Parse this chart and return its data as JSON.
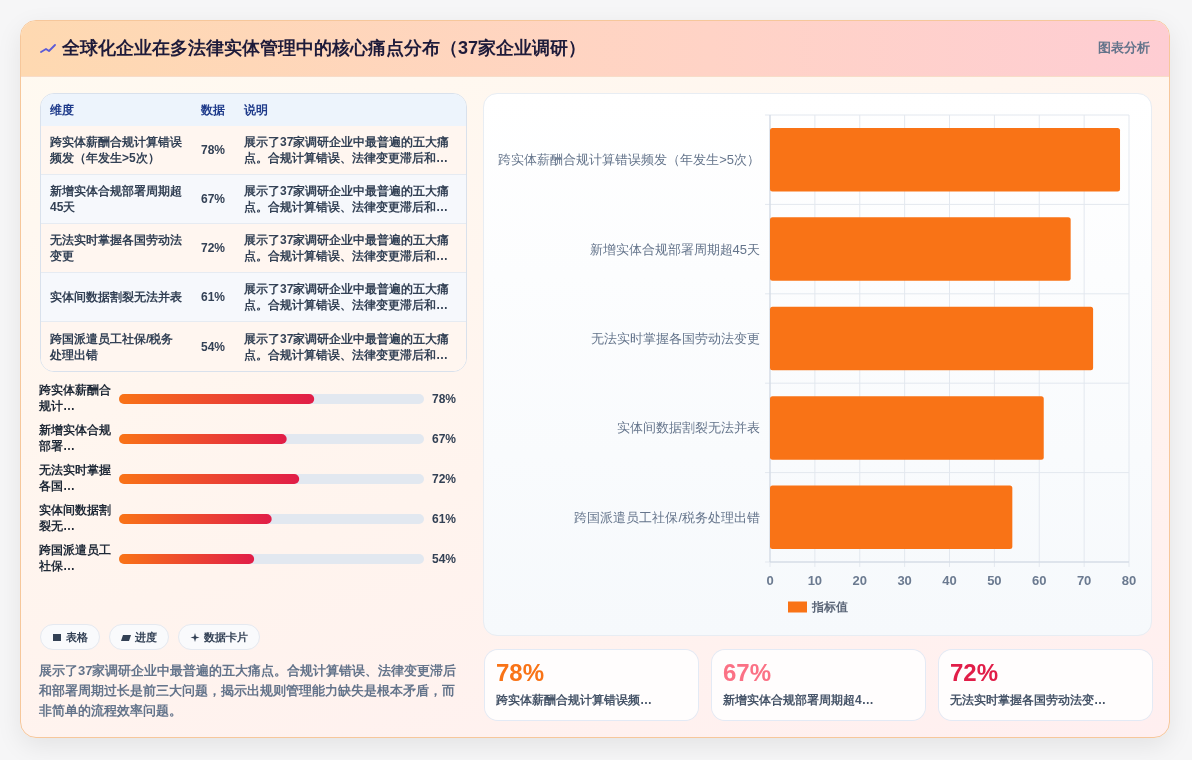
{
  "chart_data": [
    {
      "type": "other",
      "title": "全球化企业在多法律实体管理中的核心痛点分布（37家企业调研）",
      "subtitle": "图表分析",
      "ylabel": "维度",
      "xlabel": "数据",
      "y2label": "说明",
      "categories": [
        "跨实体薪酬合规计算错误频发（年发生>5次）",
        "新增实体合规部署周期超45天",
        "无法实时掌握各国劳动法变更",
        "实体间数据割裂无法并表",
        "跨国派遣员工社保/税务处理出错"
      ],
      "values": [
        78,
        67,
        72,
        61,
        54
      ],
      "value_labels": [
        "78%",
        "67%",
        "72%",
        "61%",
        "54%"
      ],
      "y2_categories": [
        "展示了37家调研企业中最普遍的五大痛点。合规计算错误、法律变更滞后和…",
        "展示了37家调研企业中最普遍的五大痛点。合规计算错误、法律变更滞后和…",
        "展示了37家调研企业中最普遍的五大痛点。合规计算错误、法律变更滞后和…",
        "展示了37家调研企业中最普遍的五大痛点。合规计算错误、法律变更滞后和…",
        "展示了37家调研企业中最普遍的五大痛点。合规计算错误、法律变更滞后和…"
      ]
    },
    {
      "type": "bar",
      "orientation": "horizontal",
      "categories": [
        "跨实体薪酬合规计算错误频发（年发生>5次）",
        "新增实体合规部署周期超45天",
        "无法实时掌握各国劳动法变更",
        "实体间数据割裂无法并表",
        "跨国派遣员工社保/税务处理出错"
      ],
      "series": [
        {
          "name": "指标值",
          "color": "#f97316",
          "values": [
            78,
            67,
            72,
            61,
            54
          ]
        }
      ],
      "xlim": [
        0,
        80
      ],
      "xticks": [
        0,
        10,
        20,
        30,
        40,
        50,
        60,
        70,
        80
      ],
      "grid": true,
      "legend": "bottom"
    },
    {
      "type": "bar",
      "orientation": "horizontal",
      "categories": [
        "跨实体薪酬合规计…",
        "新增实体合规部署…",
        "无法实时掌握各国…",
        "实体间数据割裂无…",
        "跨国派遣员工社保…"
      ],
      "values": [
        78,
        67,
        72,
        61,
        54
      ],
      "value_labels": [
        "78%",
        "67%",
        "72%",
        "61%",
        "54%"
      ],
      "color": "#e11d48"
    },
    {
      "type": "other",
      "categories": [
        "表格",
        "进度",
        "数据卡片"
      ],
      "annotations": [
        "展示了37家调研企业中最普遍的五大痛点。合规计算错误、法律变更滞后和部署周期过长是前三大问题，揭示出规则管理能力缺失是根本矛盾，而非简单的流程效率问题。"
      ]
    },
    {
      "type": "other",
      "categories": [
        "跨实体薪酬合规计算错误频…",
        "新增实体合规部署周期超4…",
        "无法实时掌握各国劳动法变…"
      ],
      "values": [
        78,
        67,
        72
      ],
      "value_labels": [
        "78%",
        "67%",
        "72%"
      ],
      "colors": [
        "#f97316",
        "#fb7185",
        "#e11d48"
      ]
    }
  ]
}
